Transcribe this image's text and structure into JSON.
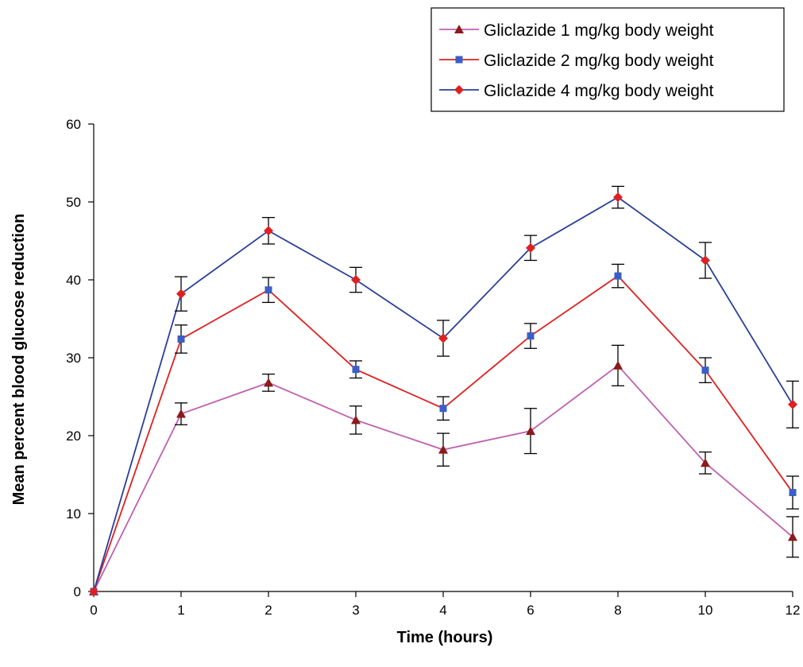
{
  "chart_data": {
    "type": "line",
    "title": "",
    "xlabel": "Time (hours)",
    "ylabel": "Mean percent blood glucose reduction",
    "categories": [
      "0",
      "1",
      "2",
      "3",
      "4",
      "6",
      "8",
      "10",
      "12"
    ],
    "ylim": [
      0,
      60
    ],
    "yticks": [
      "0",
      "10",
      "20",
      "30",
      "40",
      "50",
      "60"
    ],
    "grid": false,
    "legend_position": "top-right",
    "series": [
      {
        "name": "Gliclazide 1 mg/kg body weight",
        "color": "#c060b0",
        "marker_color": "#8b1a1a",
        "marker": "triangle",
        "values": [
          0,
          22.8,
          26.8,
          22.0,
          18.2,
          20.6,
          29.0,
          16.5,
          7.0
        ],
        "errors": [
          0,
          1.4,
          1.1,
          1.8,
          2.1,
          2.9,
          2.6,
          1.4,
          2.6
        ]
      },
      {
        "name": "Gliclazide 2 mg/kg body weight",
        "color": "#e02020",
        "marker_color": "#3a5fc8",
        "marker": "square",
        "values": [
          0,
          32.4,
          38.7,
          28.5,
          23.5,
          32.8,
          40.5,
          28.4,
          12.7
        ],
        "errors": [
          0,
          1.8,
          1.6,
          1.1,
          1.5,
          1.6,
          1.5,
          1.6,
          2.1
        ]
      },
      {
        "name": "Gliclazide 4 mg/kg body weight",
        "color": "#2a3f9a",
        "marker_color": "#e02020",
        "marker": "diamond",
        "values": [
          0,
          38.2,
          46.3,
          40.0,
          32.5,
          44.1,
          50.6,
          42.5,
          24.0
        ],
        "errors": [
          0,
          2.2,
          1.7,
          1.6,
          2.3,
          1.6,
          1.4,
          2.3,
          3.0
        ]
      }
    ]
  }
}
